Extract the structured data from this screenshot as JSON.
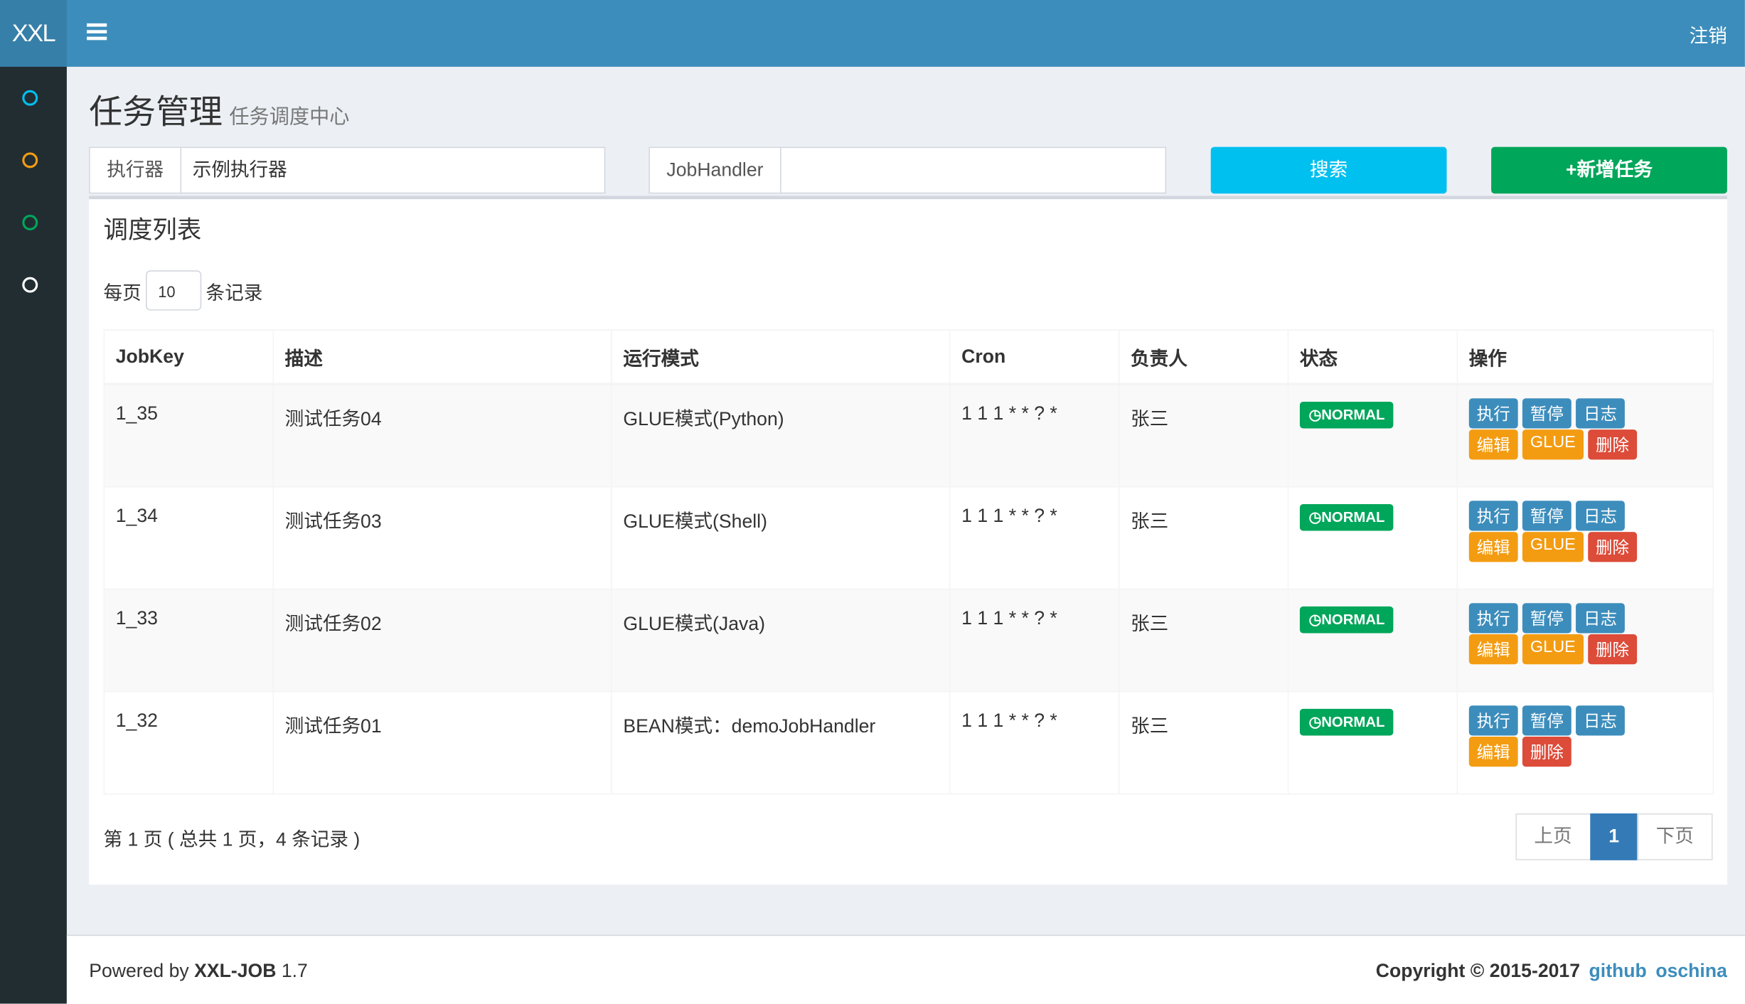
{
  "header": {
    "logo": "XXL",
    "logout": "注销"
  },
  "page": {
    "title": "任务管理",
    "subtitle": "任务调度中心"
  },
  "filters": {
    "executor_label": "执行器",
    "executor_value": "示例执行器",
    "jobhandler_label": "JobHandler",
    "search": "搜索",
    "add": "+新增任务"
  },
  "box": {
    "title": "调度列表",
    "length_prefix": "每页",
    "length_value": "10",
    "length_suffix": "条记录"
  },
  "table": {
    "headers": [
      "JobKey",
      "描述",
      "运行模式",
      "Cron",
      "负责人",
      "状态",
      "操作"
    ],
    "rows": [
      {
        "jobkey": "1_35",
        "desc": "测试任务04",
        "mode": "GLUE模式(Python)",
        "cron": "1 1 1 * * ? *",
        "owner": "张三",
        "status": "NORMAL",
        "ops": [
          [
            "执行",
            "暂停",
            "日志"
          ],
          [
            "编辑",
            "GLUE",
            "删除"
          ]
        ]
      },
      {
        "jobkey": "1_34",
        "desc": "测试任务03",
        "mode": "GLUE模式(Shell)",
        "cron": "1 1 1 * * ? *",
        "owner": "张三",
        "status": "NORMAL",
        "ops": [
          [
            "执行",
            "暂停",
            "日志"
          ],
          [
            "编辑",
            "GLUE",
            "删除"
          ]
        ]
      },
      {
        "jobkey": "1_33",
        "desc": "测试任务02",
        "mode": "GLUE模式(Java)",
        "cron": "1 1 1 * * ? *",
        "owner": "张三",
        "status": "NORMAL",
        "ops": [
          [
            "执行",
            "暂停",
            "日志"
          ],
          [
            "编辑",
            "GLUE",
            "删除"
          ]
        ]
      },
      {
        "jobkey": "1_32",
        "desc": "测试任务01",
        "mode": "BEAN模式：demoJobHandler",
        "cron": "1 1 1 * * ? *",
        "owner": "张三",
        "status": "NORMAL",
        "ops": [
          [
            "执行",
            "暂停",
            "日志"
          ],
          [
            "编辑",
            "删除"
          ]
        ]
      }
    ]
  },
  "pagination": {
    "info": "第 1 页 ( 总共 1 页，4 条记录 )",
    "prev": "上页",
    "current": "1",
    "next": "下页"
  },
  "footer": {
    "powered_prefix": "Powered by",
    "product": "XXL-JOB",
    "version": "1.7",
    "copyright": "Copyright © 2015-2017",
    "links": [
      "github",
      "oschina"
    ]
  }
}
